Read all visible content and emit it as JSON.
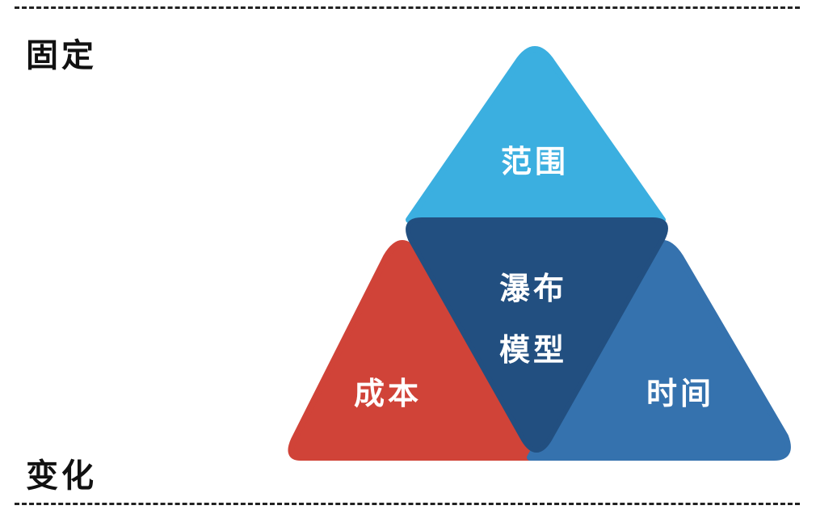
{
  "labels": {
    "fixed": "固定",
    "variable": "变化"
  },
  "triangle": {
    "top": "范围",
    "left": "成本",
    "right": "时间",
    "center_line1": "瀑布",
    "center_line2": "模型"
  },
  "colors": {
    "top": "#3BAFE0",
    "left": "#D04338",
    "right": "#3572AE",
    "center": "#224F80"
  }
}
